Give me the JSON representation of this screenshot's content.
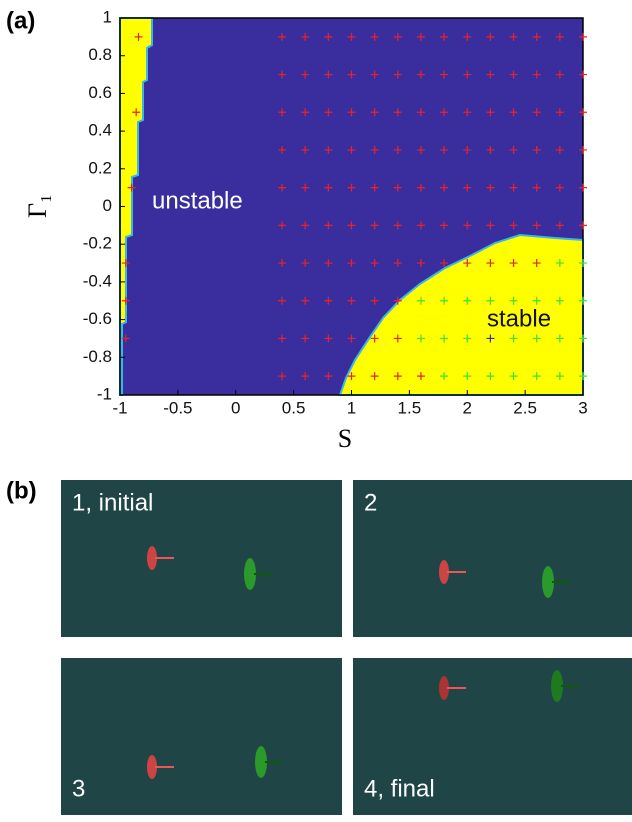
{
  "panel_labels": [
    "(a)",
    "(b)"
  ],
  "chart_data": {
    "type": "scatter",
    "xlabel": "S",
    "ylabel": "Γ₁",
    "annotations": [
      "unstable",
      "stable"
    ],
    "xlim": [
      -1,
      3
    ],
    "ylim": [
      -1,
      1
    ],
    "xticks": [
      -1,
      -0.5,
      0,
      0.5,
      1,
      1.5,
      2,
      2.5,
      3
    ],
    "yticks": [
      1,
      0.8,
      0.6,
      0.4,
      0.2,
      0,
      -0.2,
      -0.4,
      -0.6,
      -0.8,
      -1
    ],
    "series": [
      {
        "color": "#e8222a",
        "x": [
          0.4,
          0.6,
          0.8,
          1,
          1.2,
          1.4,
          1.6,
          1.8,
          2,
          2.2,
          2.4,
          2.6,
          2.8,
          3,
          0.4,
          0.6,
          0.8,
          1,
          1.2,
          1.4,
          1.6,
          1.8,
          2,
          2.2,
          2.4,
          2.6,
          2.8,
          3,
          0.4,
          0.6,
          0.8,
          1,
          1.2,
          1.4,
          1.6,
          1.8,
          2,
          2.2,
          2.4,
          2.6,
          2.8,
          3,
          0.4,
          0.6,
          0.8,
          1,
          1.2,
          1.4,
          1.6,
          1.8,
          2,
          2.2,
          2.4,
          2.6,
          2.8,
          3,
          0.4,
          0.6,
          0.8,
          1,
          1.2,
          1.4,
          1.6,
          1.8,
          2,
          2.2,
          2.4,
          2.6,
          2.8,
          3,
          0.4,
          0.6,
          0.8,
          1,
          1.2,
          1.4,
          1.6,
          1.8,
          2,
          2.2,
          2.4,
          2.6,
          2.8,
          3,
          0.4,
          0.6,
          0.8,
          1,
          1.2,
          1.4,
          1.6,
          1.8,
          2,
          2.2,
          2.4,
          2.6,
          0.4,
          0.6,
          0.8,
          1,
          1.2,
          1.4,
          0.4,
          0.6,
          0.8,
          1,
          1.2,
          1.4,
          0.4,
          0.6,
          0.8,
          1,
          1.2,
          1.4,
          1.6,
          -0.84,
          -0.86,
          -0.9,
          -0.95,
          -0.95,
          -0.95
        ],
        "y": [
          0.9,
          0.9,
          0.9,
          0.9,
          0.9,
          0.9,
          0.9,
          0.9,
          0.9,
          0.9,
          0.9,
          0.9,
          0.9,
          0.9,
          0.7,
          0.7,
          0.7,
          0.7,
          0.7,
          0.7,
          0.7,
          0.7,
          0.7,
          0.7,
          0.7,
          0.7,
          0.7,
          0.7,
          0.5,
          0.5,
          0.5,
          0.5,
          0.5,
          0.5,
          0.5,
          0.5,
          0.5,
          0.5,
          0.5,
          0.5,
          0.5,
          0.5,
          0.3,
          0.3,
          0.3,
          0.3,
          0.3,
          0.3,
          0.3,
          0.3,
          0.3,
          0.3,
          0.3,
          0.3,
          0.3,
          0.3,
          0.1,
          0.1,
          0.1,
          0.1,
          0.1,
          0.1,
          0.1,
          0.1,
          0.1,
          0.1,
          0.1,
          0.1,
          0.1,
          0.1,
          -0.1,
          -0.1,
          -0.1,
          -0.1,
          -0.1,
          -0.1,
          -0.1,
          -0.1,
          -0.1,
          -0.1,
          -0.1,
          -0.1,
          -0.1,
          -0.1,
          -0.3,
          -0.3,
          -0.3,
          -0.3,
          -0.3,
          -0.3,
          -0.3,
          -0.3,
          -0.3,
          -0.3,
          -0.3,
          -0.3,
          -0.5,
          -0.5,
          -0.5,
          -0.5,
          -0.5,
          -0.5,
          -0.7,
          -0.7,
          -0.7,
          -0.7,
          -0.7,
          -0.7,
          -0.9,
          -0.9,
          -0.9,
          -0.9,
          -0.9,
          -0.9,
          -0.9,
          0.9,
          0.5,
          0.1,
          -0.3,
          -0.5,
          -0.7
        ]
      },
      {
        "color": "#3ee03a",
        "x": [
          2.8,
          3,
          1.6,
          1.8,
          2,
          2.2,
          2.4,
          2.6,
          2.8,
          3,
          1.6,
          1.8,
          2,
          2.4,
          2.6,
          2.8,
          3,
          1.8,
          2,
          2.2,
          2.4,
          2.6,
          2.8,
          3
        ],
        "y": [
          -0.3,
          -0.3,
          -0.5,
          -0.5,
          -0.5,
          -0.5,
          -0.5,
          -0.5,
          -0.5,
          -0.5,
          -0.7,
          -0.7,
          -0.7,
          -0.7,
          -0.7,
          -0.7,
          -0.7,
          -0.9,
          -0.9,
          -0.9,
          -0.9,
          -0.9,
          -0.9,
          -0.9
        ]
      },
      {
        "color": "#3a2e9f",
        "x": [
          2.2
        ],
        "y": [
          -0.7
        ]
      }
    ]
  },
  "snapshots": [
    "1, initial",
    "2",
    "3",
    "4, final"
  ]
}
